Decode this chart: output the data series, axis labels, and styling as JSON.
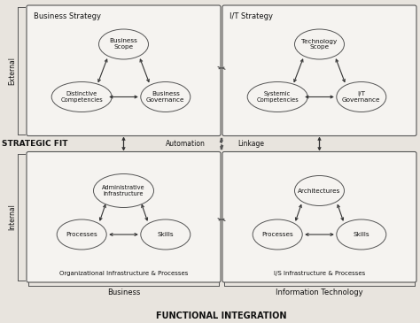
{
  "bg_color": "#e8e4de",
  "box_fc": "#f5f3f0",
  "box_ec": "#555555",
  "ellipse_fc": "#f5f3f0",
  "ellipse_ec": "#555555",
  "text_color": "#111111",
  "arrow_color": "#333333",
  "dashed_color": "#555555",
  "quadrant_titles": {
    "tl": "Business Strategy",
    "tr": "I/T Strategy",
    "bl": "Organizational Infrastructure & Processes",
    "br": "I/S Infrastructure & Processes"
  },
  "side_labels": {
    "external": "External",
    "internal": "Internal"
  },
  "bottom_labels": {
    "left": "Business",
    "right": "Information Technology"
  },
  "fit_label": "STRATEGIC FIT",
  "fi_label": "FUNCTIONAL INTEGRATION",
  "automation_label": "Automation",
  "linkage_label": "Linkage",
  "tl_nodes": [
    "Business\nScope",
    "Distinctive\nCompetencies",
    "Business\nGovernance"
  ],
  "tr_nodes": [
    "Technology\nScope",
    "Systemic\nCompetencies",
    "I/T\nGovernance"
  ],
  "bl_nodes": [
    "Administrative\nInfrastructure",
    "Processes",
    "Skills"
  ],
  "br_nodes": [
    "Architectures",
    "Processes",
    "Skills"
  ]
}
